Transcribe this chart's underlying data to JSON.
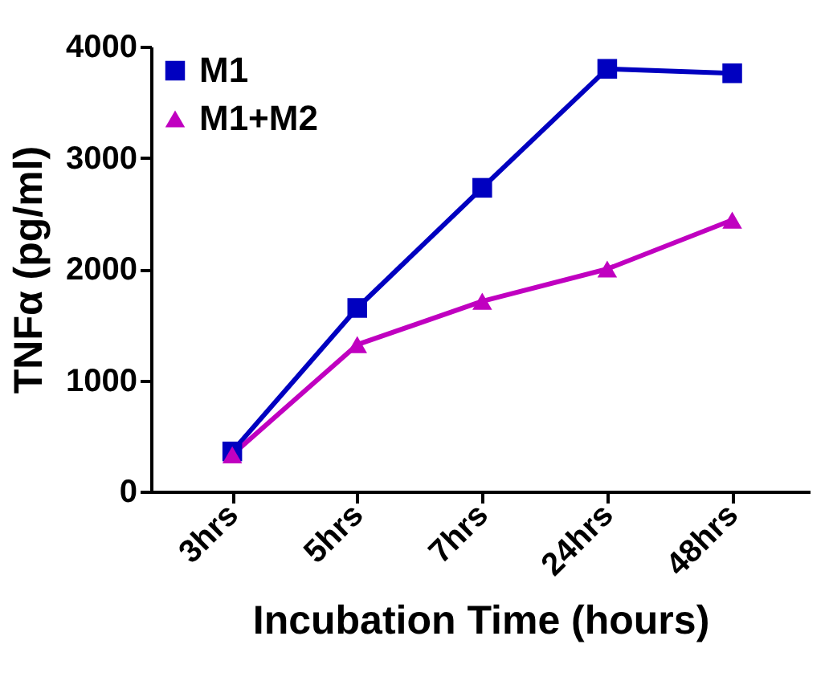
{
  "chart_data": {
    "type": "line",
    "xlabel": "Incubation Time (hours)",
    "ylabel": "TNFα (pg/ml)",
    "categories": [
      "3hrs",
      "5hrs",
      "7hrs",
      "24hrs",
      "48hrs"
    ],
    "series": [
      {
        "name": "M1",
        "color": "#0000c0",
        "marker": "square",
        "values": [
          360,
          1650,
          2730,
          3800,
          3760
        ]
      },
      {
        "name": "M1+M2",
        "color": "#c000c0",
        "marker": "triangle",
        "values": [
          330,
          1320,
          1710,
          2000,
          2440
        ]
      }
    ],
    "ylim": [
      0,
      4000
    ],
    "yticks": [
      0,
      1000,
      2000,
      3000,
      4000
    ],
    "grid": false,
    "legend": "top left",
    "line_style": "solid"
  }
}
